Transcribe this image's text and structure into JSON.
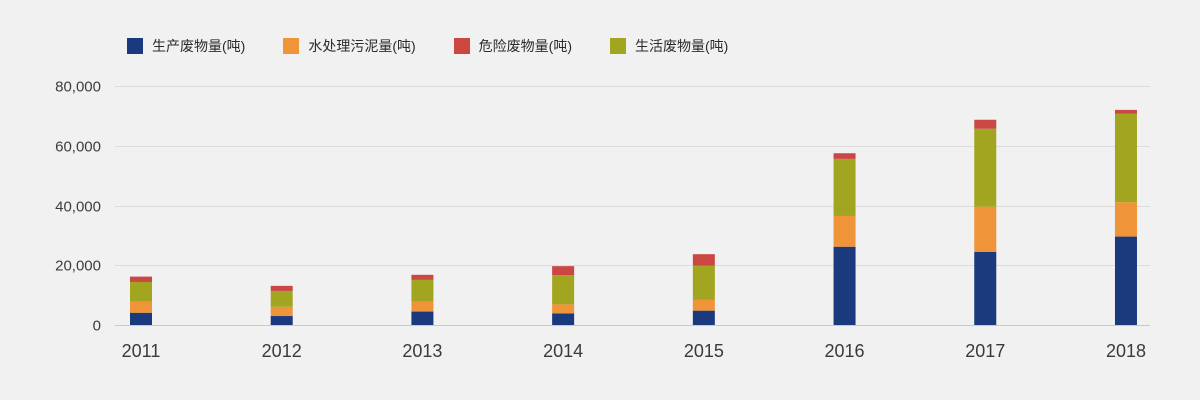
{
  "page": {
    "background": "#f1f1f1"
  },
  "legend": {
    "items": [
      {
        "label": "生产废物量(吨)",
        "color": "#1a3a7d",
        "key": "production-waste"
      },
      {
        "label": "水处理污泥量(吨)",
        "color": "#ef9438",
        "key": "sludge"
      },
      {
        "label": "危险废物量(吨)",
        "color": "#cb4744",
        "key": "hazardous-waste"
      },
      {
        "label": "生活废物量(吨)",
        "color": "#a1a520",
        "key": "domestic-waste"
      }
    ]
  },
  "chart_data": {
    "type": "bar",
    "stacked": true,
    "legend_position": "top",
    "grid": true,
    "categories": [
      "2011",
      "2012",
      "2013",
      "2014",
      "2015",
      "2016",
      "2017",
      "2018"
    ],
    "series": [
      {
        "key": "production-waste",
        "name": "生产废物量(吨)",
        "color": "#1a3a7d",
        "values": [
          4100,
          3000,
          4500,
          3900,
          4800,
          26200,
          24500,
          29600
        ]
      },
      {
        "key": "sludge",
        "name": "水处理污泥量(吨)",
        "color": "#ef9438",
        "values": [
          3700,
          3100,
          3300,
          3000,
          3600,
          10300,
          15100,
          11500
        ]
      },
      {
        "key": "domestic-waste",
        "name": "生活废物量(吨)",
        "color": "#a1a520",
        "values": [
          6600,
          5300,
          7300,
          9800,
          11500,
          19100,
          26100,
          29600
        ]
      },
      {
        "key": "hazardous-waste",
        "name": "危险废物量(吨)",
        "color": "#cb4744",
        "values": [
          1800,
          1700,
          1700,
          3000,
          3800,
          1900,
          3000,
          1300
        ]
      }
    ],
    "stack_order_note": "series listed bottom-to-top; hazardous (red) renders on top",
    "yticks": [
      {
        "value": 0,
        "label": "0"
      },
      {
        "value": 20000,
        "label": "20,000"
      },
      {
        "value": 40000,
        "label": "40,000"
      },
      {
        "value": 60000,
        "label": "60,000"
      },
      {
        "value": 80000,
        "label": "80,000"
      }
    ],
    "ylim": [
      0,
      80000
    ],
    "axis_text_color": "#3d3d3d",
    "gridline_color": "#dcdcdc",
    "baseline_color": "#c9c9c9"
  }
}
